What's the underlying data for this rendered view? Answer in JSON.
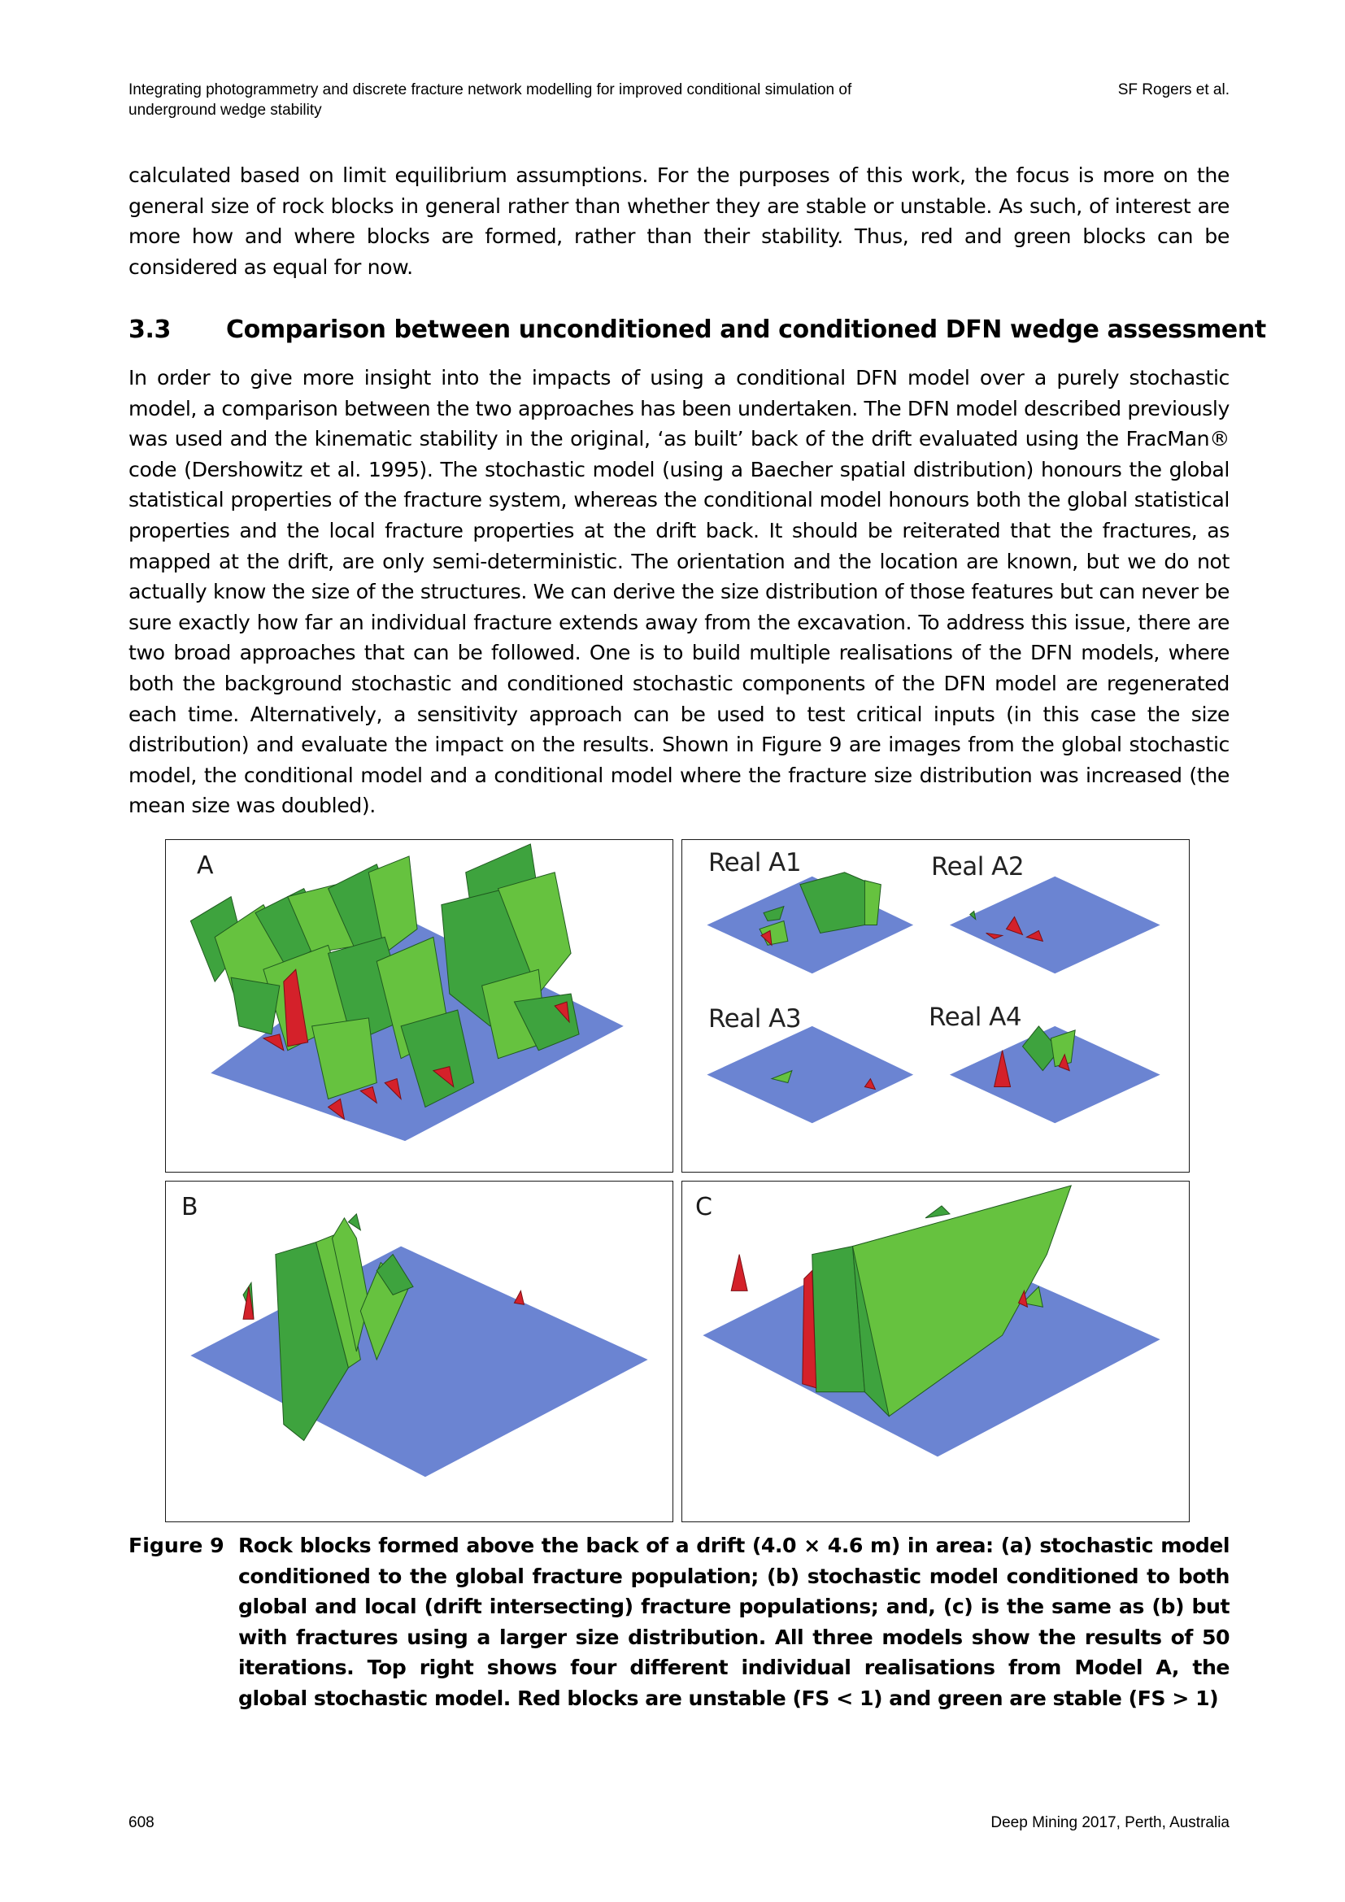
{
  "header": {
    "title": "Integrating photogrammetry and discrete fracture network modelling for improved conditional simulation of underground wedge stability",
    "author": "SF Rogers et al."
  },
  "body": {
    "paragraph_1": "calculated based on limit equilibrium assumptions. For the purposes of this work, the focus is more on the general size of rock blocks in general rather than whether they are stable or unstable. As such, of interest are more how and where blocks are formed, rather than their stability. Thus, red and green blocks can be considered as equal for now.",
    "section_number": "3.3",
    "section_title": "Comparison between unconditioned and conditioned DFN wedge assessment",
    "paragraph_2": "In order to give more insight into the impacts of using a conditional DFN model over a purely stochastic model, a comparison between the two approaches has been undertaken. The DFN model described previously was used and the kinematic stability in the original, ‘as built’ back of the drift evaluated using the FracMan® code (Dershowitz et al. 1995). The stochastic model (using a Baecher spatial distribution) honours the global statistical properties of the fracture system, whereas the conditional model honours both the global statistical properties and the local fracture properties at the drift back. It should be reiterated that the fractures, as mapped at the drift, are only semi-deterministic. The orientation and the location are known, but we do not actually know the size of the structures. We can derive the size distribution of those features but can never be sure exactly how far an individual fracture extends away from the excavation. To address this issue, there are two broad approaches that can be followed. One is to build multiple realisations of the DFN models, where both the background stochastic and conditioned stochastic components of the DFN model are regenerated each time. Alternatively, a sensitivity approach can be used to test critical inputs (in this case the size distribution) and evaluate the impact on the results. Shown in Figure 9 are images from the global stochastic model, the conditional model and a conditional model where the fracture size distribution was increased (the mean size was doubled)."
  },
  "figure": {
    "panel_a_label": "A",
    "panel_b_label": "B",
    "panel_c_label": "C",
    "realisation_labels": [
      "Real A1",
      "Real A2",
      "Real A3",
      "Real A4"
    ],
    "colors": {
      "plane": "#6b84d2",
      "stable_block": "#3ea33e",
      "stable_light": "#66c23f",
      "unstable_block": "#d4212a"
    },
    "caption_label": "Figure 9",
    "caption_text": "Rock blocks formed above the back of a drift (4.0 × 4.6 m) in area: (a) stochastic model conditioned to the global fracture population; (b) stochastic model conditioned to both global and local (drift intersecting) fracture populations; and, (c) is the same as (b) but with fractures using a larger size distribution. All three models show the results of 50 iterations. Top right shows four different individual realisations from Model A, the global stochastic model. Red blocks are unstable (FS < 1) and green are stable (FS > 1)"
  },
  "footer": {
    "page_number": "608",
    "conference": "Deep Mining 2017, Perth, Australia"
  }
}
